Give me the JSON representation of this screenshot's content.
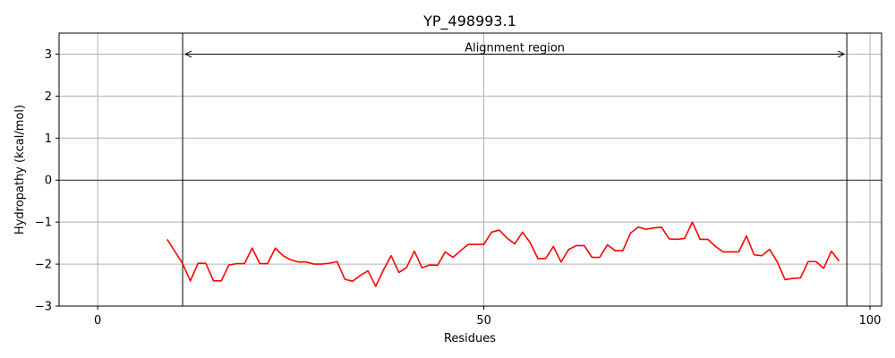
{
  "chart_data": {
    "type": "line",
    "title": "YP_498993.1",
    "xlabel": "Residues",
    "ylabel": "Hydropathy (kcal/mol)",
    "xlim": [
      -5,
      101.5
    ],
    "ylim": [
      -3,
      3.5
    ],
    "xticks": [
      0,
      50,
      100
    ],
    "yticks": [
      -3,
      -2,
      -1,
      0,
      1,
      2,
      3
    ],
    "grid": true,
    "line_color": "#ff0000",
    "zero_line": 0,
    "vertical_lines": [
      11,
      97
    ],
    "annotation": {
      "text": "Alignment region",
      "y": 3,
      "x_start": 11,
      "x_end": 97
    },
    "series": [
      {
        "x": [
          9,
          10,
          11,
          12,
          13,
          14,
          15,
          16,
          17,
          18,
          19,
          20,
          21,
          22,
          23,
          24,
          25,
          26,
          27,
          28,
          29,
          30,
          31,
          32,
          33,
          34,
          35,
          36,
          37,
          38,
          39,
          40,
          41,
          42,
          43,
          44,
          45,
          46,
          47,
          48,
          49,
          50,
          51,
          52,
          53,
          54,
          55,
          56,
          57,
          58,
          59,
          60,
          61,
          62,
          63,
          64,
          65,
          66,
          67,
          68,
          69,
          70,
          71,
          72,
          73,
          74,
          75,
          76,
          77,
          78,
          79,
          80,
          81,
          82,
          83,
          84,
          85,
          86,
          87,
          88,
          89,
          90,
          91,
          92,
          93,
          94,
          95,
          96
        ],
        "values": [
          -1.41,
          -1.7,
          -1.99,
          -2.4,
          -1.98,
          -1.98,
          -2.4,
          -2.4,
          -2.02,
          -1.99,
          -1.99,
          -1.62,
          -1.99,
          -1.99,
          -1.62,
          -1.8,
          -1.9,
          -1.95,
          -1.95,
          -2.0,
          -2.0,
          -1.98,
          -1.94,
          -2.36,
          -2.41,
          -2.27,
          -2.16,
          -2.53,
          -2.14,
          -1.8,
          -2.2,
          -2.08,
          -1.69,
          -2.09,
          -2.02,
          -2.03,
          -1.71,
          -1.84,
          -1.68,
          -1.53,
          -1.53,
          -1.53,
          -1.24,
          -1.19,
          -1.38,
          -1.52,
          -1.24,
          -1.49,
          -1.87,
          -1.87,
          -1.58,
          -1.95,
          -1.65,
          -1.56,
          -1.56,
          -1.84,
          -1.84,
          -1.54,
          -1.68,
          -1.68,
          -1.26,
          -1.12,
          -1.17,
          -1.14,
          -1.12,
          -1.4,
          -1.41,
          -1.39,
          -1.0,
          -1.41,
          -1.41,
          -1.58,
          -1.71,
          -1.71,
          -1.71,
          -1.33,
          -1.78,
          -1.8,
          -1.65,
          -1.95,
          -2.37,
          -2.34,
          -2.33,
          -1.94,
          -1.94,
          -2.1,
          -1.69,
          -1.93
        ]
      }
    ]
  }
}
